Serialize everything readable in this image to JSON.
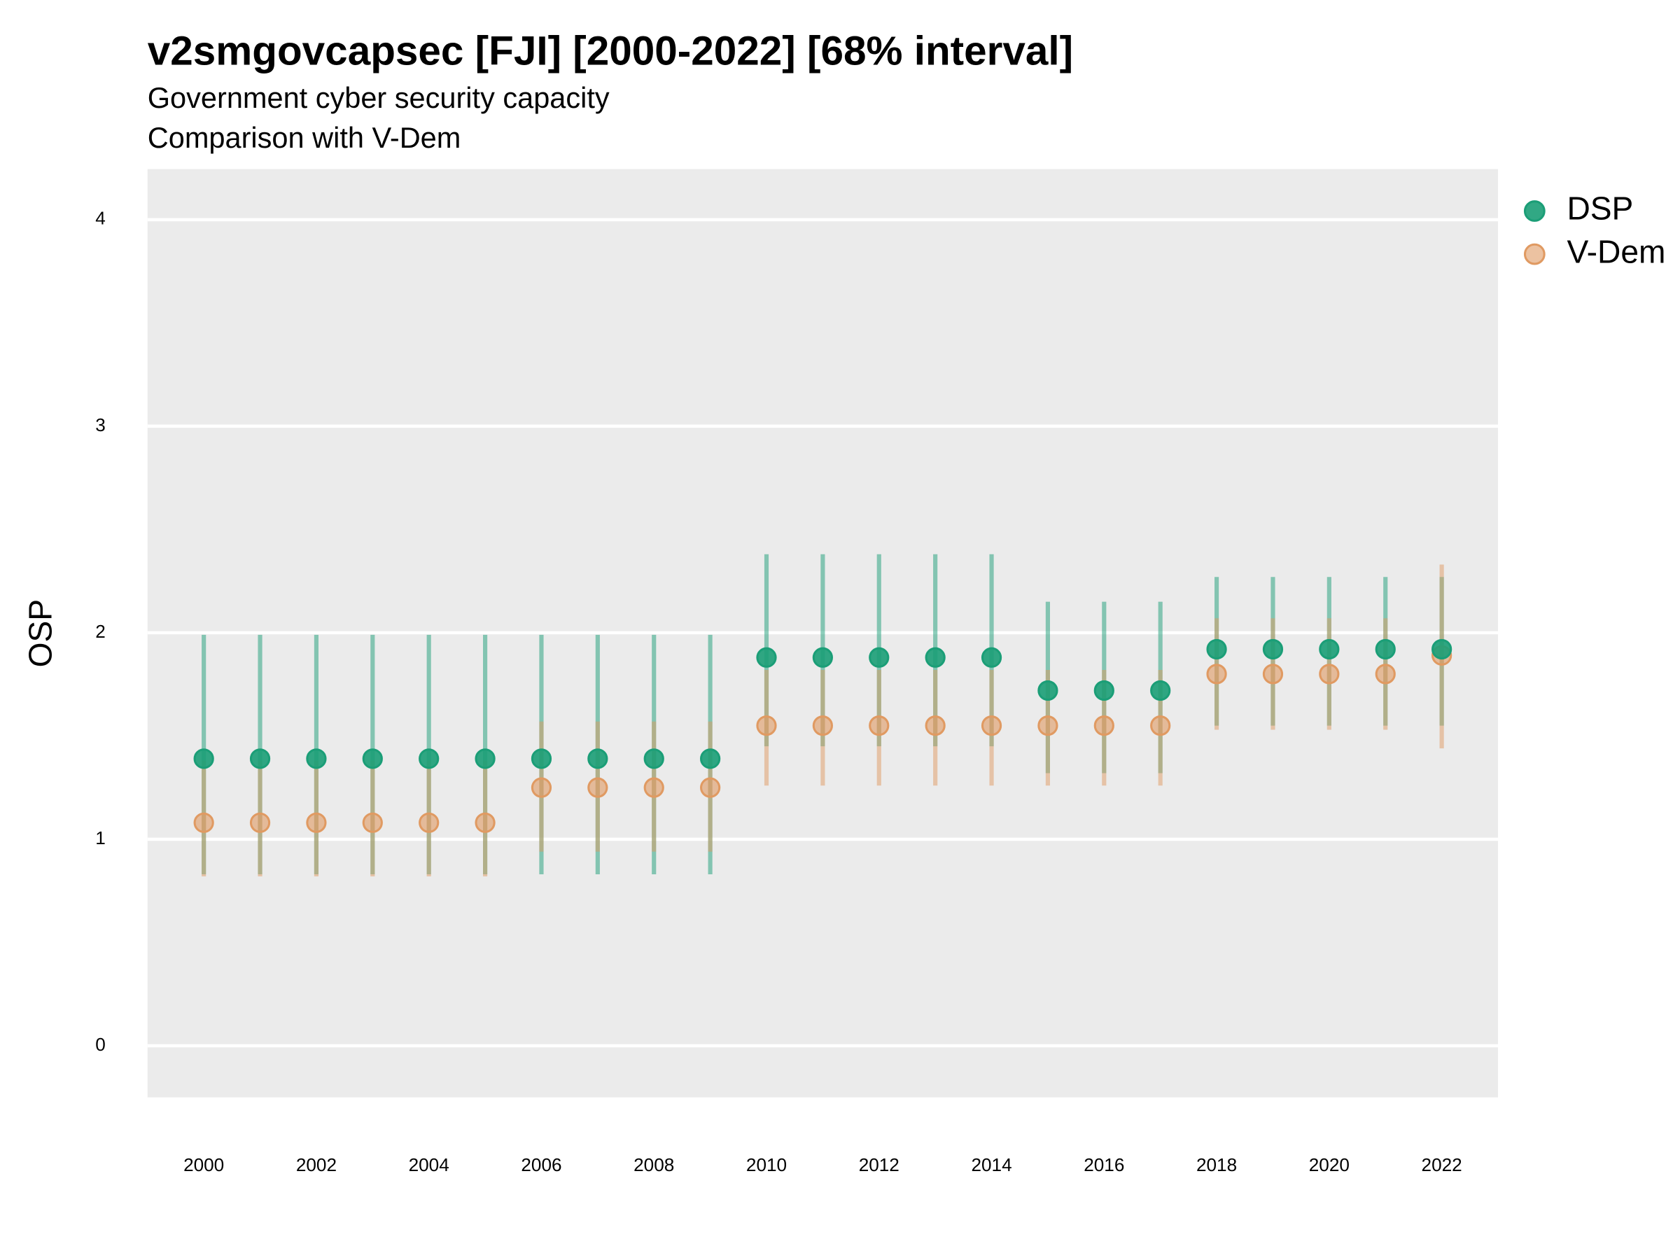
{
  "chart_data": {
    "type": "errorbar",
    "title": "v2smgovcapsec [FJI] [2000-2022] [68% interval]",
    "subtitle": "Government cyber security capacity",
    "caption": "Comparison with V-Dem",
    "y_label": "OSP",
    "x": [
      2000,
      2001,
      2002,
      2003,
      2004,
      2005,
      2006,
      2007,
      2008,
      2009,
      2010,
      2011,
      2012,
      2013,
      2014,
      2015,
      2016,
      2017,
      2018,
      2019,
      2020,
      2021,
      2022
    ],
    "xlim": [
      1999,
      2023
    ],
    "xticks": [
      2000,
      2002,
      2004,
      2006,
      2008,
      2010,
      2012,
      2014,
      2016,
      2018,
      2020,
      2022
    ],
    "ylim": [
      -0.25,
      4.245
    ],
    "yticks": [
      0,
      1,
      2,
      3,
      4
    ],
    "grid": true,
    "legend": "right",
    "series": [
      {
        "name": "DSP",
        "color": "#1b9e77",
        "values": [
          1.39,
          1.39,
          1.39,
          1.39,
          1.39,
          1.39,
          1.39,
          1.39,
          1.39,
          1.39,
          1.88,
          1.88,
          1.88,
          1.88,
          1.88,
          1.72,
          1.72,
          1.72,
          1.92,
          1.92,
          1.92,
          1.92,
          1.92
        ],
        "lower": [
          0.83,
          0.83,
          0.83,
          0.83,
          0.83,
          0.83,
          0.83,
          0.83,
          0.83,
          0.83,
          1.45,
          1.45,
          1.45,
          1.45,
          1.45,
          1.32,
          1.32,
          1.32,
          1.55,
          1.55,
          1.55,
          1.55,
          1.55
        ],
        "upper": [
          1.99,
          1.99,
          1.99,
          1.99,
          1.99,
          1.99,
          1.99,
          1.99,
          1.99,
          1.99,
          2.38,
          2.38,
          2.38,
          2.38,
          2.38,
          2.15,
          2.15,
          2.15,
          2.27,
          2.27,
          2.27,
          2.27,
          2.27
        ]
      },
      {
        "name": "V-Dem",
        "color": "#e09a62",
        "values": [
          1.08,
          1.08,
          1.08,
          1.08,
          1.08,
          1.08,
          1.25,
          1.25,
          1.25,
          1.25,
          1.55,
          1.55,
          1.55,
          1.55,
          1.55,
          1.55,
          1.55,
          1.55,
          1.8,
          1.8,
          1.8,
          1.8,
          1.89
        ],
        "lower": [
          0.82,
          0.82,
          0.82,
          0.82,
          0.82,
          0.82,
          0.94,
          0.94,
          0.94,
          0.94,
          1.26,
          1.26,
          1.26,
          1.26,
          1.26,
          1.26,
          1.26,
          1.26,
          1.53,
          1.53,
          1.53,
          1.53,
          1.44
        ],
        "upper": [
          1.38,
          1.38,
          1.38,
          1.38,
          1.38,
          1.38,
          1.57,
          1.57,
          1.57,
          1.57,
          1.82,
          1.82,
          1.82,
          1.82,
          1.82,
          1.82,
          1.82,
          1.82,
          2.07,
          2.07,
          2.07,
          2.07,
          2.33
        ]
      }
    ]
  }
}
